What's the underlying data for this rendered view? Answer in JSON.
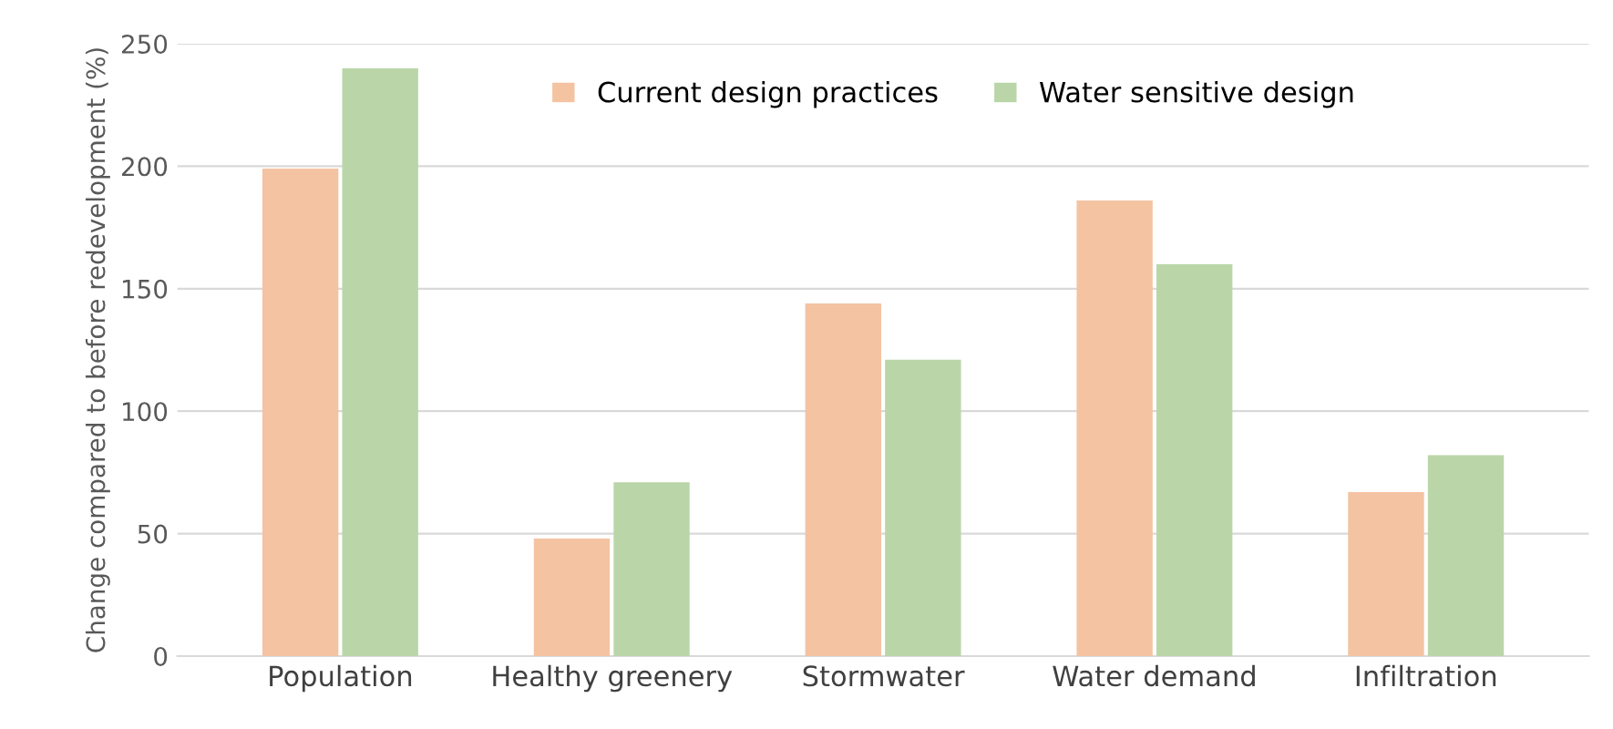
{
  "chart_data": {
    "type": "bar",
    "ylabel": "Change compared to before redevelopment (%)",
    "categories": [
      "Population",
      "Healthy greenery",
      "Stormwater",
      "Water demand",
      "Infiltration"
    ],
    "series": [
      {
        "name": "Current design practices",
        "color": "#f4c3a2",
        "values": [
          199,
          48,
          144,
          186,
          67
        ]
      },
      {
        "name": "Water sensitive design",
        "color": "#bad6a8",
        "values": [
          240,
          71,
          121,
          160,
          82
        ]
      }
    ],
    "ylim": [
      0,
      250
    ],
    "yticks": [
      0,
      50,
      100,
      150,
      200,
      250
    ],
    "grid": "y",
    "legend": "top"
  }
}
